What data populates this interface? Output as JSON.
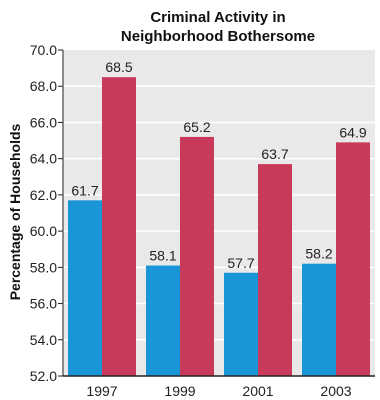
{
  "chart_data": {
    "type": "bar",
    "title_lines": [
      "Criminal Activity in",
      "Neighborhood Bothersome"
    ],
    "ylabel": "Percentage of Households",
    "xlabel": "",
    "categories": [
      "1997",
      "1999",
      "2001",
      "2003"
    ],
    "series": [
      {
        "values": [
          61.7,
          58.1,
          57.7,
          58.2
        ],
        "color": "#1a96d8"
      },
      {
        "values": [
          68.5,
          65.2,
          63.7,
          64.9
        ],
        "color": "#c93a5a"
      }
    ],
    "ylim": [
      52.0,
      70.0
    ],
    "yticks": [
      "52.0",
      "54.0",
      "56.0",
      "58.0",
      "60.0",
      "62.0",
      "64.0",
      "66.0",
      "68.0",
      "70.0"
    ],
    "grid": true,
    "plot_background": "#e9e9e9",
    "grid_color": "#ffffff"
  }
}
